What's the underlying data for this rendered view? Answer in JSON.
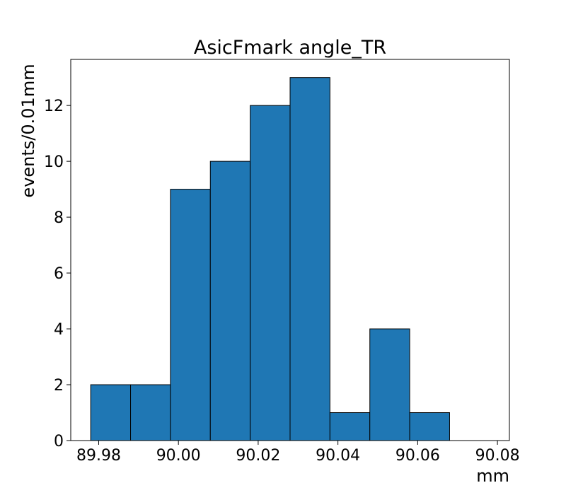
{
  "chart_data": {
    "type": "bar",
    "title": "AsicFmark angle_TR",
    "xlabel": "mm",
    "ylabel": "events/0.01mm",
    "bin_edges": [
      89.978,
      89.988,
      89.998,
      90.008,
      90.018,
      90.028,
      90.038,
      90.048,
      90.058,
      90.068,
      90.078
    ],
    "values": [
      2,
      2,
      9,
      10,
      12,
      13,
      1,
      4,
      1,
      0
    ],
    "xlim": [
      89.973,
      90.083
    ],
    "ylim": [
      0,
      13.65
    ],
    "xticks": [
      89.98,
      90.0,
      90.02,
      90.04,
      90.06,
      90.08
    ],
    "xtick_labels": [
      "89.98",
      "90.00",
      "90.02",
      "90.04",
      "90.06",
      "90.08"
    ],
    "yticks": [
      0,
      2,
      4,
      6,
      8,
      10,
      12
    ],
    "ytick_labels": [
      "0",
      "2",
      "4",
      "6",
      "8",
      "10",
      "12"
    ],
    "bar_color": "#1f77b4",
    "edge_color": "#000000",
    "grid": false,
    "legend": "none"
  }
}
